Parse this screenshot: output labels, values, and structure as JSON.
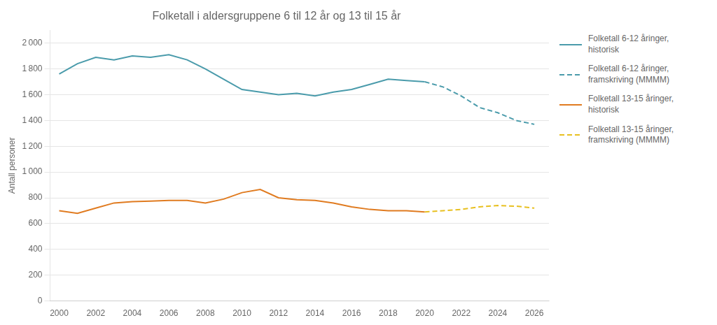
{
  "chart_data": {
    "type": "line",
    "title": "Folketall i aldersgruppene 6 til 12 år og 13 til 15 år",
    "ylabel": "Antall personer",
    "series": [
      {
        "name": "Folketall 6-12 åringer,\nhistorisk",
        "color": "#4a9bab",
        "line_style": "solid",
        "x": [
          2000,
          2001,
          2002,
          2003,
          2004,
          2005,
          2006,
          2007,
          2008,
          2009,
          2010,
          2011,
          2012,
          2013,
          2014,
          2015,
          2016,
          2017,
          2018,
          2019,
          2020
        ],
        "values": [
          1760,
          1840,
          1890,
          1870,
          1900,
          1890,
          1910,
          1870,
          1800,
          1720,
          1640,
          1620,
          1600,
          1610,
          1590,
          1620,
          1640,
          1680,
          1720,
          1710,
          1700
        ]
      },
      {
        "name": "Folketall 6-12 åringer,\nframskriving (MMMM)",
        "color": "#4a9bab",
        "line_style": "dashed",
        "x": [
          2020,
          2021,
          2022,
          2023,
          2024,
          2025,
          2026
        ],
        "values": [
          1700,
          1660,
          1590,
          1500,
          1460,
          1400,
          1370
        ]
      },
      {
        "name": "Folketall 13-15 åringer,\nhistorisk",
        "color": "#e07b20",
        "line_style": "solid",
        "x": [
          2000,
          2001,
          2002,
          2003,
          2004,
          2005,
          2006,
          2007,
          2008,
          2009,
          2010,
          2011,
          2012,
          2013,
          2014,
          2015,
          2016,
          2017,
          2018,
          2019,
          2020
        ],
        "values": [
          700,
          680,
          720,
          760,
          770,
          775,
          780,
          780,
          760,
          790,
          840,
          865,
          800,
          785,
          780,
          760,
          730,
          710,
          700,
          700,
          690
        ]
      },
      {
        "name": "Folketall 13-15 åringer,\nframskriving (MMMM)",
        "color": "#e8c020",
        "line_style": "dashed",
        "x": [
          2020,
          2021,
          2022,
          2023,
          2024,
          2025,
          2026
        ],
        "values": [
          690,
          700,
          710,
          730,
          740,
          735,
          720
        ]
      }
    ],
    "xlim": [
      1999.5,
      2026.8
    ],
    "xticks": [
      2000,
      2002,
      2004,
      2006,
      2008,
      2010,
      2012,
      2014,
      2016,
      2018,
      2020,
      2022,
      2024,
      2026
    ],
    "ylim": [
      0,
      2100
    ],
    "yticks": [
      0,
      200,
      400,
      600,
      800,
      {
        "value": 1000,
        "label": "1 000"
      },
      {
        "value": 1200,
        "label": "1 200"
      },
      {
        "value": 1400,
        "label": "1 400"
      },
      {
        "value": 1600,
        "label": "1 600"
      },
      {
        "value": 1800,
        "label": "1 800"
      },
      {
        "value": 2000,
        "label": "2 000"
      }
    ],
    "grid": true,
    "legend": "upper right"
  }
}
